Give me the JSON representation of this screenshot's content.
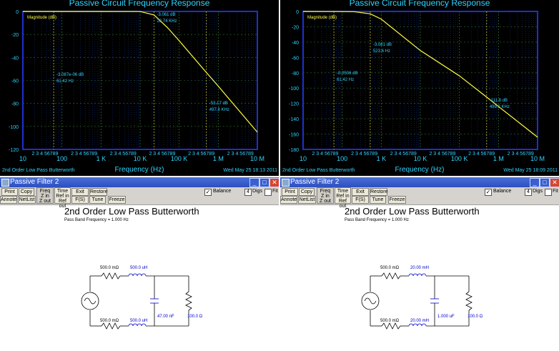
{
  "panels": [
    {
      "plot_title": "Passive Circuit Frequency Response",
      "magnitude_label": "Magnitude (dB)",
      "y_ticks": [
        "0",
        "-20",
        "-40",
        "-60",
        "-80",
        "-100",
        "-120"
      ],
      "x_decade_labels": [
        "10",
        "100",
        "1 K",
        "10 K",
        "100 K",
        "1 M",
        "10 M"
      ],
      "x_minor_label": "2 3 4 56789",
      "x_axis_label": "Frequency (Hz)",
      "filter_label": "2nd Order Low Pass Butterworth",
      "timestamp": "Wed May 25 18:13 2011",
      "markers": [
        {
          "db": "-3.087e-06 dB",
          "freq": "61.42 Hz"
        },
        {
          "db": "-3.061 dB",
          "freq": "22.74 KHz"
        },
        {
          "db": "-53.17 dB",
          "freq": "497.8 KHz"
        }
      ],
      "window_title": "Passive Filter 2",
      "toolbar": {
        "print": "Print",
        "copy": "Copy",
        "freq_zin": [
          "Freq",
          "Z in",
          "Z out"
        ],
        "time_ref": [
          "Time",
          "Ref in",
          "Ref out"
        ],
        "exit": "Exit",
        "restore": "Restore",
        "annotate": "Annote",
        "netlist": "NetList",
        "fs": "F(S)",
        "tune": "Tune",
        "freeze": "Freeze",
        "balance_label": "Balance",
        "balance_checked": "✓",
        "digs_value": "4",
        "digs_label": "Digs",
        "fit_label": "Fit"
      },
      "circuit_title": "2nd Order Low Pass Butterworth",
      "pass_band": "Pass Band Frequency = 1.000 Hz",
      "components": {
        "r_top": "500.0 mΩ",
        "l_top": "500.0 uH",
        "c_shunt": "47.00 nF",
        "r_load": "100.0 Ω",
        "r_bot": "500.0 mΩ",
        "l_bot": "500.0 uH"
      },
      "chart_data": {
        "type": "line",
        "title": "Passive Circuit Frequency Response",
        "xlabel": "Frequency (Hz)",
        "ylabel": "Magnitude (dB)",
        "x_scale": "log",
        "xlim": [
          10,
          10000000
        ],
        "ylim": [
          -120,
          0
        ],
        "grid": true,
        "x": [
          10,
          1000,
          10000,
          22740,
          50000,
          100000,
          497800,
          1000000,
          10000000
        ],
        "y": [
          0,
          0,
          -0.05,
          -3.061,
          -14,
          -25.5,
          -53.17,
          -65,
          -105
        ]
      }
    },
    {
      "plot_title": "Passive Circuit Frequency Response",
      "magnitude_label": "Magnitude (dB)",
      "y_ticks": [
        "0",
        "-20",
        "-40",
        "-60",
        "-80",
        "-100",
        "-120",
        "-140",
        "-160",
        "-180"
      ],
      "x_decade_labels": [
        "10",
        "100",
        "1 K",
        "10 K",
        "100 K",
        "1 M",
        "10 M"
      ],
      "x_minor_label": "2 3 4 56789",
      "x_axis_label": "Frequency (Hz)",
      "filter_label": "2nd Order Low Pass Butterworth",
      "timestamp": "Wed May 25 18:09 2011",
      "markers": [
        {
          "db": "-0.0506 dB",
          "freq": "61.42 Hz"
        },
        {
          "db": "-3.081 dB",
          "freq": "523.6 Hz"
        },
        {
          "db": "-111.8 dB",
          "freq": "499.2 KHz"
        }
      ],
      "window_title": "Passive Filter 2",
      "toolbar": {
        "print": "Print",
        "copy": "Copy",
        "freq_zin": [
          "Freq",
          "Z in",
          "Z out"
        ],
        "time_ref": [
          "Time",
          "Ref in",
          "Ref out"
        ],
        "exit": "Exit",
        "restore": "Restore",
        "annotate": "Annote",
        "netlist": "NetList",
        "fs": "F(S)",
        "tune": "Tune",
        "freeze": "Freeze",
        "balance_label": "Balance",
        "balance_checked": "✓",
        "digs_value": "4",
        "digs_label": "Digs",
        "fit_label": "Fit"
      },
      "circuit_title": "2nd Order Low Pass Butterworth",
      "pass_band": "Pass Band Frequency = 1.000 Hz",
      "components": {
        "r_top": "500.0 mΩ",
        "l_top": "20.00 mH",
        "c_shunt": "1.000 uF",
        "r_load": "100.0 Ω",
        "r_bot": "500.0 mΩ",
        "l_bot": "20.00 mH"
      },
      "chart_data": {
        "type": "line",
        "title": "Passive Circuit Frequency Response",
        "xlabel": "Frequency (Hz)",
        "ylabel": "Magnitude (dB)",
        "x_scale": "log",
        "xlim": [
          10,
          10000000
        ],
        "ylim": [
          -180,
          0
        ],
        "grid": true,
        "x": [
          10,
          61.42,
          200,
          523.6,
          1000,
          10000,
          100000,
          499200,
          1000000,
          10000000
        ],
        "y": [
          0,
          -0.0506,
          -0.3,
          -3.081,
          -10,
          -51,
          -84,
          -111.8,
          -124,
          -164
        ]
      }
    }
  ]
}
